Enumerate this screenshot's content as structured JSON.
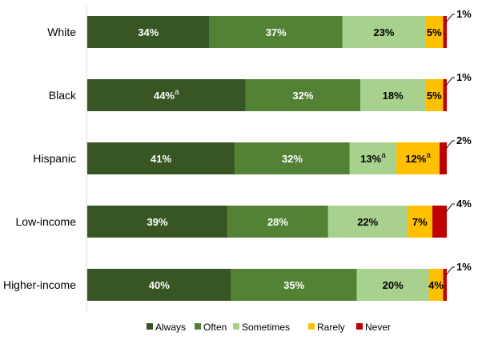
{
  "chart_data": {
    "type": "bar",
    "orientation": "horizontal",
    "stacked": true,
    "xlim": [
      0,
      100
    ],
    "grid": false,
    "legend_position": "bottom",
    "categories": [
      "White",
      "Black",
      "Hispanic",
      "Low-income",
      "Higher-income"
    ],
    "series": [
      {
        "name": "Always",
        "color": "#375623",
        "values": [
          34,
          44,
          41,
          39,
          40
        ],
        "labels": [
          "34%",
          "44%",
          "41%",
          "39%",
          "40%"
        ],
        "superscripts": [
          "",
          "a",
          "",
          "",
          ""
        ]
      },
      {
        "name": "Often",
        "color": "#548235",
        "values": [
          37,
          32,
          32,
          28,
          35
        ],
        "labels": [
          "37%",
          "32%",
          "32%",
          "28%",
          "35%"
        ],
        "superscripts": [
          "",
          "",
          "",
          "",
          ""
        ]
      },
      {
        "name": "Sometimes",
        "color": "#a9d18e",
        "values": [
          23,
          18,
          13,
          22,
          20
        ],
        "labels": [
          "23%",
          "18%",
          "13%",
          "22%",
          "20%"
        ],
        "superscripts": [
          "",
          "",
          "a",
          "",
          ""
        ]
      },
      {
        "name": "Rarely",
        "color": "#ffc000",
        "values": [
          5,
          5,
          12,
          7,
          4
        ],
        "labels": [
          "5%",
          "5%",
          "12%",
          "7%",
          "4%"
        ],
        "superscripts": [
          "",
          "",
          "a",
          "",
          ""
        ]
      },
      {
        "name": "Never",
        "color": "#c00000",
        "values": [
          1,
          1,
          2,
          4,
          1
        ],
        "labels": [
          "1%",
          "1%",
          "2%",
          "4%",
          "1%"
        ],
        "superscripts": [
          "",
          "",
          "",
          "",
          ""
        ]
      }
    ]
  }
}
